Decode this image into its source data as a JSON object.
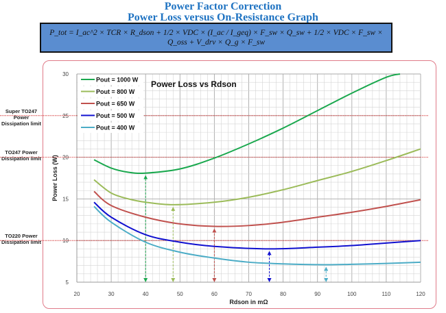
{
  "header": {
    "title_line1": "Power Factor Correction",
    "title_line2": "Power Loss versus On-Resistance Graph"
  },
  "formula": "P_tot = I_ac^2 × TCR × R_dson + 1/2 × VDC × (I_ac / I_geq) × F_sw × Q_sw + 1/2 × VDC × F_sw × Q_oss + V_drv × Q_g × F_sw",
  "limits": [
    {
      "label": "Super TO247 Power Dissipation limit",
      "value": 25
    },
    {
      "label": "TO247 Power Dissipation limit",
      "value": 20
    },
    {
      "label": "TO220 Power Dissipation limit",
      "value": 10
    }
  ],
  "chart_data": {
    "type": "line",
    "title": "Power Loss vs Rdson",
    "xlabel": "Rdson in mΩ",
    "ylabel": "Power Loss (W)",
    "xlim": [
      20,
      120
    ],
    "ylim": [
      5,
      30
    ],
    "xticks": [
      20,
      30,
      40,
      50,
      60,
      70,
      80,
      90,
      100,
      110,
      120
    ],
    "yticks": [
      5,
      10,
      15,
      20,
      25,
      30
    ],
    "grid": true,
    "legend": "top-left",
    "series": [
      {
        "name": "Pout = 1000 W",
        "color": "#1aa84e",
        "x": [
          25,
          30,
          35,
          40,
          50,
          60,
          70,
          80,
          90,
          100,
          110,
          114
        ],
        "y": [
          19.7,
          18.7,
          18.2,
          18.1,
          18.6,
          19.9,
          21.6,
          23.5,
          25.6,
          27.7,
          29.6,
          30
        ],
        "min_x": 40
      },
      {
        "name": "Pout = 800 W",
        "color": "#9bbb59",
        "x": [
          25,
          30,
          35,
          40,
          48,
          60,
          70,
          80,
          90,
          100,
          110,
          120
        ],
        "y": [
          17.3,
          15.7,
          15.0,
          14.6,
          14.3,
          14.6,
          15.2,
          16.1,
          17.2,
          18.3,
          19.6,
          21.0
        ],
        "min_x": 48
      },
      {
        "name": "Pout = 650 W",
        "color": "#c0504d",
        "x": [
          25,
          30,
          40,
          50,
          60,
          70,
          80,
          90,
          100,
          110,
          120
        ],
        "y": [
          15.9,
          14.2,
          12.8,
          12.0,
          11.7,
          11.8,
          12.2,
          12.8,
          13.4,
          14.1,
          14.9
        ],
        "min_x": 60
      },
      {
        "name": "Pout = 500 W",
        "color": "#1010d0",
        "x": [
          25,
          30,
          40,
          50,
          60,
          76,
          90,
          100,
          110,
          120
        ],
        "y": [
          14.6,
          12.8,
          10.7,
          9.8,
          9.3,
          9.0,
          9.2,
          9.4,
          9.7,
          10.0
        ],
        "min_x": 76
      },
      {
        "name": "Pout = 400 W",
        "color": "#4bacc6",
        "x": [
          25,
          30,
          40,
          50,
          60,
          70,
          80,
          92,
          100,
          110,
          120
        ],
        "y": [
          14.1,
          12.2,
          9.8,
          8.6,
          7.9,
          7.4,
          7.2,
          7.1,
          7.15,
          7.25,
          7.4
        ],
        "min_x": 92.5
      }
    ]
  }
}
